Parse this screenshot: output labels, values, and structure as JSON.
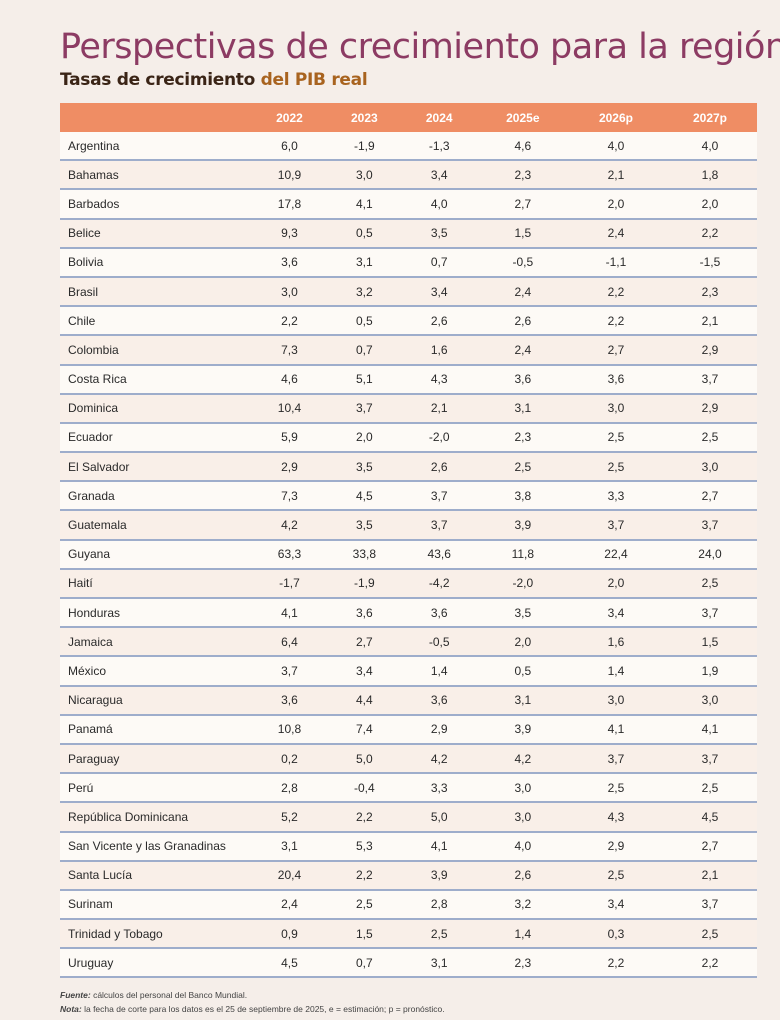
{
  "title": "Perspectivas de crecimiento para la región",
  "subtitle": {
    "part1": "Tasas de crecimiento ",
    "part2": "del PIB real"
  },
  "colors": {
    "title": "#8c3b63",
    "header": "#ef8d64",
    "accent": "#a8631f",
    "row_border": "#9eadcb"
  },
  "table": {
    "columns": [
      "",
      "2022",
      "2023",
      "2024",
      "2025e",
      "2026p",
      "2027p"
    ],
    "rows": [
      [
        "Argentina",
        "6,0",
        "-1,9",
        "-1,3",
        "4,6",
        "4,0",
        "4,0"
      ],
      [
        "Bahamas",
        "10,9",
        "3,0",
        "3,4",
        "2,3",
        "2,1",
        "1,8"
      ],
      [
        "Barbados",
        "17,8",
        "4,1",
        "4,0",
        "2,7",
        "2,0",
        "2,0"
      ],
      [
        "Belice",
        "9,3",
        "0,5",
        "3,5",
        "1,5",
        "2,4",
        "2,2"
      ],
      [
        "Bolivia",
        "3,6",
        "3,1",
        "0,7",
        "-0,5",
        "-1,1",
        "-1,5"
      ],
      [
        "Brasil",
        "3,0",
        "3,2",
        "3,4",
        "2,4",
        "2,2",
        "2,3"
      ],
      [
        "Chile",
        "2,2",
        "0,5",
        "2,6",
        "2,6",
        "2,2",
        "2,1"
      ],
      [
        "Colombia",
        "7,3",
        "0,7",
        "1,6",
        "2,4",
        "2,7",
        "2,9"
      ],
      [
        "Costa Rica",
        "4,6",
        "5,1",
        "4,3",
        "3,6",
        "3,6",
        "3,7"
      ],
      [
        "Dominica",
        "10,4",
        "3,7",
        "2,1",
        "3,1",
        "3,0",
        "2,9"
      ],
      [
        "Ecuador",
        "5,9",
        "2,0",
        "-2,0",
        "2,3",
        "2,5",
        "2,5"
      ],
      [
        "El Salvador",
        "2,9",
        "3,5",
        "2,6",
        "2,5",
        "2,5",
        "3,0"
      ],
      [
        "Granada",
        "7,3",
        "4,5",
        "3,7",
        "3,8",
        "3,3",
        "2,7"
      ],
      [
        "Guatemala",
        "4,2",
        "3,5",
        "3,7",
        "3,9",
        "3,7",
        "3,7"
      ],
      [
        "Guyana",
        "63,3",
        "33,8",
        "43,6",
        "11,8",
        "22,4",
        "24,0"
      ],
      [
        "Haití",
        "-1,7",
        "-1,9",
        "-4,2",
        "-2,0",
        "2,0",
        "2,5"
      ],
      [
        "Honduras",
        "4,1",
        "3,6",
        "3,6",
        "3,5",
        "3,4",
        "3,7"
      ],
      [
        "Jamaica",
        "6,4",
        "2,7",
        "-0,5",
        "2,0",
        "1,6",
        "1,5"
      ],
      [
        "México",
        "3,7",
        "3,4",
        "1,4",
        "0,5",
        "1,4",
        "1,9"
      ],
      [
        "Nicaragua",
        "3,6",
        "4,4",
        "3,6",
        "3,1",
        "3,0",
        "3,0"
      ],
      [
        "Panamá",
        "10,8",
        "7,4",
        "2,9",
        "3,9",
        "4,1",
        "4,1"
      ],
      [
        "Paraguay",
        "0,2",
        "5,0",
        "4,2",
        "4,2",
        "3,7",
        "3,7"
      ],
      [
        "Perú",
        "2,8",
        "-0,4",
        "3,3",
        "3,0",
        "2,5",
        "2,5"
      ],
      [
        "República Dominicana",
        "5,2",
        "2,2",
        "5,0",
        "3,0",
        "4,3",
        "4,5"
      ],
      [
        "San Vicente y las Granadinas",
        "3,1",
        "5,3",
        "4,1",
        "4,0",
        "2,9",
        "2,7"
      ],
      [
        "Santa Lucía",
        "20,4",
        "2,2",
        "3,9",
        "2,6",
        "2,5",
        "2,1"
      ],
      [
        "Surinam",
        "2,4",
        "2,5",
        "2,8",
        "3,2",
        "3,4",
        "3,7"
      ],
      [
        "Trinidad y Tobago",
        "0,9",
        "1,5",
        "2,5",
        "1,4",
        "0,3",
        "2,5"
      ],
      [
        "Uruguay",
        "4,5",
        "0,7",
        "3,1",
        "2,3",
        "2,2",
        "2,2"
      ]
    ]
  },
  "notes": {
    "source_label": "Fuente:",
    "source_text": " cálculos del personal del Banco Mundial.",
    "note_label": "Nota:",
    "note_text": " la fecha de corte para los datos es el 25 de septiembre de 2025, e = estimación; p = pronóstico."
  }
}
